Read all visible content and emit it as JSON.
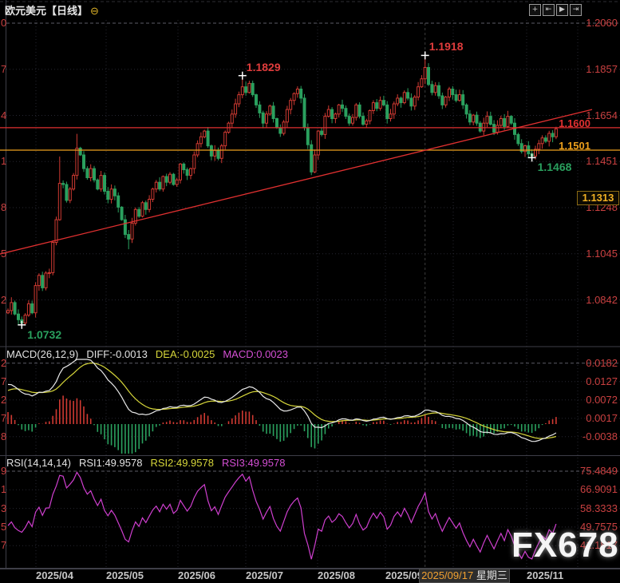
{
  "header": {
    "title": "欧元美元【日线】",
    "collapse_icon": "⊖",
    "toolbar": [
      {
        "name": "pan-icon",
        "glyph": "+"
      },
      {
        "name": "scale-left-icon",
        "glyph": "⇤"
      },
      {
        "name": "autoplay-icon",
        "glyph": "▶"
      },
      {
        "name": "scale-right-icon",
        "glyph": "⇥"
      }
    ]
  },
  "watermark": "FX678",
  "macd_header": {
    "label": "MACD(26,12,9)",
    "diff": "DIFF:-0.0013",
    "dea": "DEA:-0.0025",
    "macd": "MACD:0.0023"
  },
  "rsi_header": {
    "label": "RSI(14,14,14)",
    "rsi1": "RSI1:49.9578",
    "rsi2": "RSI2:49.9578",
    "rsi3": "RSI3:49.9578"
  },
  "crosshair": {
    "date": "2025/09/17",
    "weekday": "星期三",
    "price_label": "1.1313",
    "index": 121
  },
  "colors": {
    "bg": "#000000",
    "up": "#d03a32",
    "down": "#2aa05e",
    "axis_red": "#c94040",
    "line_red": "#e03030",
    "orange": "#eda01c",
    "diff": "#e8e8e8",
    "dea": "#d6d63a",
    "macd_value": "#d44fd4",
    "rsi": "#cf3fcf",
    "grid": "#262631",
    "grid_bright": "#5c5c66",
    "ann_red": "#e03c3c",
    "divider": "#3e3e48",
    "cross": "#ffffff",
    "xlabel": "#c6c6c6"
  },
  "chart_data": {
    "type": "candlestick+macd+rsi",
    "title": "EUR/USD daily with MACD(26,12,9) and RSI(14,14,14)",
    "price": {
      "type": "candlestick",
      "open_first": 1.0785,
      "closes": [
        1.0795,
        1.083,
        1.078,
        1.0755,
        1.074,
        1.0775,
        1.0825,
        1.0785,
        1.0905,
        1.095,
        1.0895,
        1.096,
        1.0962,
        1.1095,
        1.1195,
        1.1355,
        1.135,
        1.128,
        1.133,
        1.139,
        1.151,
        1.148,
        1.142,
        1.138,
        1.142,
        1.137,
        1.133,
        1.139,
        1.132,
        1.1285,
        1.133,
        1.13,
        1.125,
        1.1195,
        1.113,
        1.111,
        1.118,
        1.124,
        1.121,
        1.127,
        1.124,
        1.1285,
        1.133,
        1.136,
        1.133,
        1.1385,
        1.136,
        1.1395,
        1.135,
        1.137,
        1.144,
        1.1415,
        1.139,
        1.142,
        1.148,
        1.153,
        1.156,
        1.1585,
        1.152,
        1.1475,
        1.15,
        1.1465,
        1.152,
        1.158,
        1.162,
        1.166,
        1.1705,
        1.1745,
        1.178,
        1.1755,
        1.1795,
        1.1745,
        1.17,
        1.1665,
        1.162,
        1.166,
        1.1695,
        1.164,
        1.16,
        1.1575,
        1.1625,
        1.168,
        1.172,
        1.175,
        1.177,
        1.173,
        1.16,
        1.1525,
        1.1405,
        1.148,
        1.1585,
        1.157,
        1.165,
        1.168,
        1.164,
        1.166,
        1.17,
        1.1685,
        1.165,
        1.162,
        1.1645,
        1.17,
        1.165,
        1.1615,
        1.163,
        1.1675,
        1.171,
        1.1685,
        1.172,
        1.17,
        1.164,
        1.166,
        1.1705,
        1.173,
        1.171,
        1.1755,
        1.173,
        1.1695,
        1.1735,
        1.178,
        1.1815,
        1.1865,
        1.179,
        1.1755,
        1.1785,
        1.174,
        1.17,
        1.1735,
        1.177,
        1.1745,
        1.172,
        1.1745,
        1.17,
        1.166,
        1.1625,
        1.1655,
        1.162,
        1.1585,
        1.162,
        1.165,
        1.1615,
        1.158,
        1.161,
        1.164,
        1.1605,
        1.165,
        1.162,
        1.157,
        1.153,
        1.1495,
        1.152,
        1.1485,
        1.1475,
        1.1505,
        1.153,
        1.1555,
        1.154,
        1.1575,
        1.156,
        1.1595
      ],
      "wick_overrides": {
        "4": {
          "low": 1.0732
        },
        "15": {
          "high": 1.1473
        },
        "20": {
          "high": 1.1573
        },
        "35": {
          "low": 1.1065
        },
        "68": {
          "high": 1.1829
        },
        "88": {
          "low": 1.1391
        },
        "121": {
          "high": 1.1918
        },
        "152": {
          "low": 1.1468
        }
      },
      "y_ticks": [
        "1.2060",
        "1.1857",
        "1.1654",
        "1.1451",
        "1.1248",
        "1.1045",
        "1.0842"
      ],
      "ylim": [
        1.062,
        1.2095
      ],
      "annotations": [
        {
          "text": "1.1829",
          "index": 68,
          "price": 1.1829,
          "color": "red",
          "pos": "above-right"
        },
        {
          "text": "1.1918",
          "index": 121,
          "price": 1.1918,
          "color": "red",
          "pos": "above-right"
        },
        {
          "text": "1.0732",
          "index": 4,
          "price": 1.0732,
          "color": "green",
          "pos": "below-right"
        },
        {
          "text": "1.1468",
          "index": 152,
          "price": 1.1468,
          "color": "green",
          "pos": "below-right"
        }
      ],
      "h_lines": [
        {
          "price": 1.16,
          "color": "red",
          "label": "1.1600"
        },
        {
          "price": 1.1501,
          "color": "orange",
          "label": "1.1501"
        }
      ],
      "trendline": {
        "x1": 0,
        "price1": 1.1044,
        "x2": 742,
        "price2": 1.168,
        "color": "red"
      }
    },
    "macd": {
      "params": "26,12,9",
      "y_ticks": [
        "0.0182",
        "0.0127",
        "0.0072",
        "0.0017",
        "-0.0038"
      ],
      "diff": -0.0013,
      "dea": -0.0025,
      "macd": 0.0023
    },
    "rsi": {
      "params": "14,14,14",
      "y_ticks": [
        "75.4849",
        "66.9091",
        "58.3333",
        "49.7575",
        "41.1817"
      ],
      "rsi1": 49.9578,
      "rsi2": 49.9578,
      "rsi3": 49.9578
    },
    "x_labels": [
      {
        "text": "2025/04",
        "x": 45
      },
      {
        "text": "2025/05",
        "x": 133
      },
      {
        "text": "2025/06",
        "x": 223
      },
      {
        "text": "2025/07",
        "x": 308
      },
      {
        "text": "2025/08",
        "x": 398
      },
      {
        "text": "2025/09",
        "x": 483
      },
      {
        "text": "2025/11",
        "x": 660
      }
    ],
    "month_grid_x": [
      45,
      133,
      223,
      308,
      398,
      483,
      568,
      660
    ]
  }
}
